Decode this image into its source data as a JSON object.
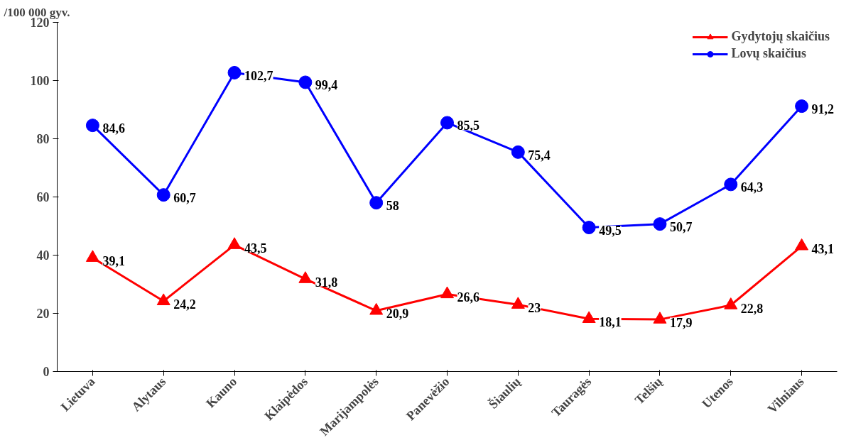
{
  "chart_data": {
    "type": "line",
    "ylabel": "/100 000 gyv.",
    "categories": [
      "Lietuva",
      "Alytaus",
      "Kauno",
      "Klaipėdos",
      "Marijampolės",
      "Panevėžio",
      "Šiaulių",
      "Tauragės",
      "Telšių",
      "Utenos",
      "Vilniaus"
    ],
    "series": [
      {
        "name": "Gydytojų skaičius",
        "color": "#ff0000",
        "marker": "triangle",
        "values": [
          39.1,
          24.2,
          43.5,
          31.8,
          20.9,
          26.6,
          23,
          18.1,
          17.9,
          22.8,
          43.1
        ],
        "value_labels": [
          "39,1",
          "24,2",
          "43,5",
          "31,8",
          "20,9",
          "26,6",
          "23",
          "18,1",
          "17,9",
          "22,8",
          "43,1"
        ]
      },
      {
        "name": "Lovų skaičius",
        "color": "#0000ff",
        "marker": "circle",
        "values": [
          84.6,
          60.7,
          102.7,
          99.4,
          58,
          85.5,
          75.4,
          49.5,
          50.7,
          64.3,
          91.2
        ],
        "value_labels": [
          "84,6",
          "60,7",
          "102,7",
          "99,4",
          "58",
          "85,5",
          "75,4",
          "49,5",
          "50,7",
          "64,3",
          "91,2"
        ]
      }
    ],
    "ylim": [
      0,
      120
    ],
    "yticks": [
      0,
      20,
      40,
      60,
      80,
      100,
      120
    ],
    "grid": false,
    "legend": "top right"
  }
}
